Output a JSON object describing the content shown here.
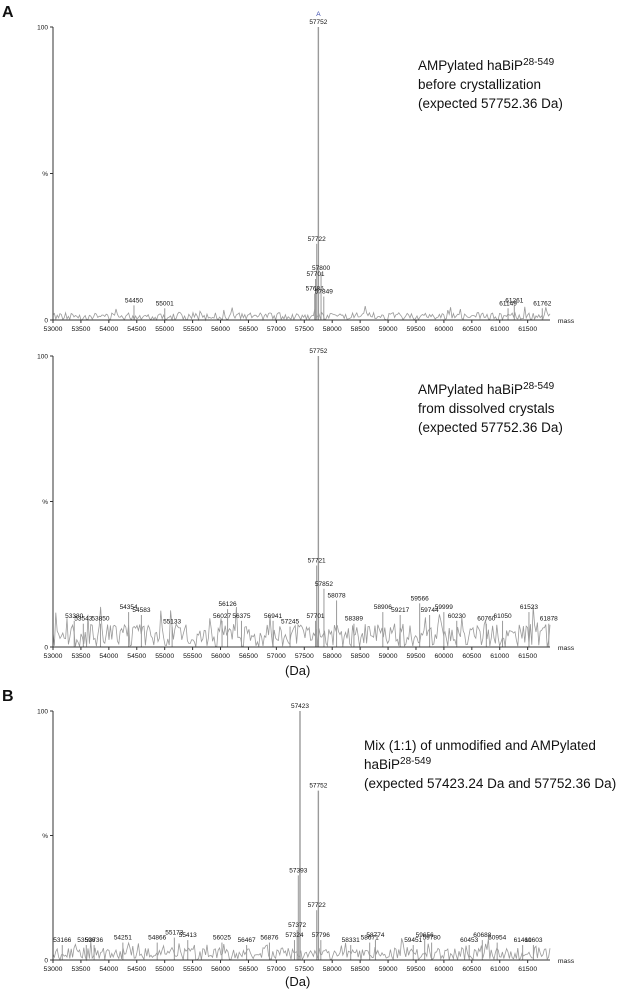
{
  "figure": {
    "panel_a_label": "A",
    "panel_b_label": "B"
  },
  "annotations": {
    "c1": {
      "line1": "AMPylated haBiP",
      "sup": "28-549",
      "line2": "before crystallization",
      "line3": "(expected 57752.36 Da)"
    },
    "c2": {
      "line1": "AMPylated haBiP",
      "sup": "28-549",
      "line2": "from dissolved crystals",
      "line3": "(expected 57752.36 Da)"
    },
    "c3": {
      "line1": "Mix (1:1) of unmodified and AMPylated",
      "line2a": "haBiP",
      "sup": "28-549",
      "line3": "(expected 57423.24 Da and 57752.36 Da)"
    }
  },
  "da_labels": {
    "c2": "(Da)",
    "c3": "(Da)"
  },
  "colors": {
    "spectrum": "#9a9a9a",
    "axis": "#333333",
    "marker": "#3344aa",
    "text": "#111111"
  },
  "chart_data": [
    {
      "type": "line",
      "xlabel": "mass",
      "xlim": [
        53000,
        61900
      ],
      "ylim": [
        0,
        100
      ],
      "y_tick_labels": [
        {
          "v": 0,
          "t": "0"
        },
        {
          "v": 50,
          "t": "%"
        },
        {
          "v": 100,
          "t": "100"
        }
      ],
      "x_ticks": [
        53000,
        53500,
        54000,
        54500,
        55000,
        55500,
        56000,
        56500,
        57000,
        57500,
        58000,
        58500,
        59000,
        59500,
        60000,
        60500,
        61000,
        61500
      ],
      "noise_level": 2.5,
      "top_marker": "A",
      "peaks": [
        {
          "x": 57752,
          "y": 100,
          "label": "57752"
        },
        {
          "x": 57722,
          "y": 26,
          "label": "57722"
        },
        {
          "x": 57701,
          "y": 14,
          "label": "57701"
        },
        {
          "x": 57686,
          "y": 9,
          "label": "57686"
        },
        {
          "x": 57800,
          "y": 16,
          "label": "57800"
        },
        {
          "x": 57849,
          "y": 8,
          "label": "57849"
        },
        {
          "x": 54450,
          "y": 5,
          "label": "54450"
        },
        {
          "x": 55001,
          "y": 4,
          "label": "55001"
        },
        {
          "x": 61149,
          "y": 4,
          "label": "61149"
        },
        {
          "x": 61261,
          "y": 5,
          "label": "61261"
        },
        {
          "x": 61762,
          "y": 4,
          "label": "61762"
        }
      ]
    },
    {
      "type": "line",
      "xlabel": "mass",
      "xlim": [
        53000,
        61900
      ],
      "ylim": [
        0,
        100
      ],
      "y_tick_labels": [
        {
          "v": 0,
          "t": "0"
        },
        {
          "v": 50,
          "t": "%"
        },
        {
          "v": 100,
          "t": "100"
        }
      ],
      "x_ticks": [
        53000,
        53500,
        54000,
        54500,
        55000,
        55500,
        56000,
        56500,
        57000,
        57500,
        58000,
        58500,
        59000,
        59500,
        60000,
        60500,
        61000,
        61500
      ],
      "noise_level": 8,
      "peaks": [
        {
          "x": 57752,
          "y": 100,
          "label": "57752"
        },
        {
          "x": 57721,
          "y": 28,
          "label": "57721"
        },
        {
          "x": 57852,
          "y": 20,
          "label": "57852"
        },
        {
          "x": 58078,
          "y": 16,
          "label": "58078"
        },
        {
          "x": 57701,
          "y": 9,
          "label": "57701"
        },
        {
          "x": 57245,
          "y": 7,
          "label": "57245"
        },
        {
          "x": 56941,
          "y": 9,
          "label": "56941"
        },
        {
          "x": 56126,
          "y": 13,
          "label": "56126"
        },
        {
          "x": 56027,
          "y": 9,
          "label": "56027"
        },
        {
          "x": 56375,
          "y": 9,
          "label": "56375"
        },
        {
          "x": 55133,
          "y": 7,
          "label": "55133"
        },
        {
          "x": 54354,
          "y": 12,
          "label": "54354"
        },
        {
          "x": 54583,
          "y": 11,
          "label": "54583"
        },
        {
          "x": 53380,
          "y": 9,
          "label": "53380"
        },
        {
          "x": 53543,
          "y": 8,
          "label": "53543"
        },
        {
          "x": 53850,
          "y": 8,
          "label": "53850"
        },
        {
          "x": 58389,
          "y": 8,
          "label": "58389"
        },
        {
          "x": 58906,
          "y": 12,
          "label": "58906"
        },
        {
          "x": 59217,
          "y": 11,
          "label": "59217"
        },
        {
          "x": 59566,
          "y": 15,
          "label": "59566"
        },
        {
          "x": 59744,
          "y": 11,
          "label": "59744"
        },
        {
          "x": 59999,
          "y": 12,
          "label": "59999"
        },
        {
          "x": 60230,
          "y": 9,
          "label": "60230"
        },
        {
          "x": 60760,
          "y": 8,
          "label": "60760"
        },
        {
          "x": 61050,
          "y": 9,
          "label": "61050"
        },
        {
          "x": 61523,
          "y": 12,
          "label": "61523"
        },
        {
          "x": 61878,
          "y": 8,
          "label": "61878"
        }
      ]
    },
    {
      "type": "line",
      "xlabel": "mass",
      "xlim": [
        53000,
        61900
      ],
      "ylim": [
        0,
        100
      ],
      "y_tick_labels": [
        {
          "v": 0,
          "t": "0"
        },
        {
          "v": 50,
          "t": "%"
        },
        {
          "v": 100,
          "t": "100"
        }
      ],
      "x_ticks": [
        53000,
        53500,
        54000,
        54500,
        55000,
        55500,
        56000,
        56500,
        57000,
        57500,
        58000,
        58500,
        59000,
        59500,
        60000,
        60500,
        61000,
        61500
      ],
      "noise_level": 5,
      "peaks": [
        {
          "x": 57423,
          "y": 100,
          "label": "57423"
        },
        {
          "x": 57752,
          "y": 68,
          "label": "57752"
        },
        {
          "x": 57393,
          "y": 34,
          "label": "57393"
        },
        {
          "x": 57722,
          "y": 20,
          "label": "57722"
        },
        {
          "x": 57372,
          "y": 12,
          "label": "57372"
        },
        {
          "x": 57324,
          "y": 8,
          "label": "57324"
        },
        {
          "x": 57796,
          "y": 8,
          "label": "57796"
        },
        {
          "x": 56876,
          "y": 7,
          "label": "56876"
        },
        {
          "x": 56467,
          "y": 6,
          "label": "56467"
        },
        {
          "x": 56025,
          "y": 7,
          "label": "56025"
        },
        {
          "x": 55413,
          "y": 8,
          "label": "55413"
        },
        {
          "x": 55173,
          "y": 9,
          "label": "55173"
        },
        {
          "x": 54866,
          "y": 7,
          "label": "54866"
        },
        {
          "x": 54251,
          "y": 7,
          "label": "54251"
        },
        {
          "x": 53736,
          "y": 6,
          "label": "53736"
        },
        {
          "x": 53596,
          "y": 6,
          "label": "53596"
        },
        {
          "x": 53166,
          "y": 6,
          "label": "53166"
        },
        {
          "x": 58331,
          "y": 6,
          "label": "58331"
        },
        {
          "x": 58671,
          "y": 7,
          "label": "58671"
        },
        {
          "x": 58774,
          "y": 8,
          "label": "58774"
        },
        {
          "x": 59451,
          "y": 6,
          "label": "59451"
        },
        {
          "x": 59656,
          "y": 8,
          "label": "59656"
        },
        {
          "x": 59780,
          "y": 7,
          "label": "59780"
        },
        {
          "x": 60453,
          "y": 6,
          "label": "60453"
        },
        {
          "x": 60688,
          "y": 8,
          "label": "60688"
        },
        {
          "x": 60954,
          "y": 7,
          "label": "60954"
        },
        {
          "x": 61410,
          "y": 6,
          "label": "61410"
        },
        {
          "x": 61603,
          "y": 6,
          "label": "61603"
        }
      ]
    }
  ]
}
